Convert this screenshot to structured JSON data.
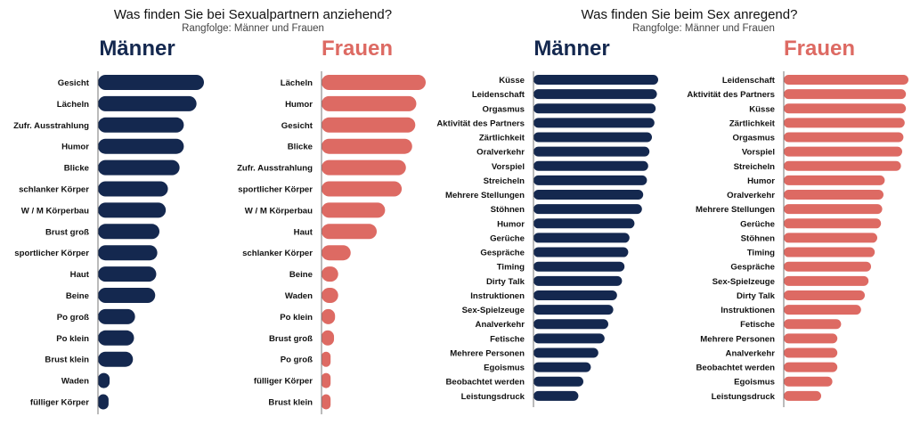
{
  "colors": {
    "men": "#14284f",
    "women": "#dd6a63",
    "axis": "#777777"
  },
  "chart_data": [
    {
      "type": "bar",
      "title": "Was finden Sie bei Sexualpartnern anziehend?",
      "subtitle": "Rangfolge: Männer und Frauen",
      "panels": [
        {
          "label": "Männer",
          "color": "men",
          "categories": [
            "Gesicht",
            "Lächeln",
            "Zufr. Ausstrahlung",
            "Humor",
            "Blicke",
            "schlanker Körper",
            "W / M Körperbau",
            "Brust groß",
            "sportlicher Körper",
            "Haut",
            "Beine",
            "Po groß",
            "Po klein",
            "Brust klein",
            "Waden",
            "fülliger Körper"
          ],
          "values": [
            100,
            93,
            81,
            81,
            77,
            66,
            64,
            58,
            56,
            55,
            54,
            35,
            34,
            33,
            11,
            10
          ]
        },
        {
          "label": "Frauen",
          "color": "women",
          "categories": [
            "Lächeln",
            "Humor",
            "Gesicht",
            "Blicke",
            "Zufr. Ausstrahlung",
            "sportlicher Körper",
            "W / M Körperbau",
            "Haut",
            "schlanker Körper",
            "Beine",
            "Waden",
            "Po klein",
            "Brust groß",
            "Po groß",
            "fülliger Körper",
            "Brust klein"
          ],
          "values": [
            100,
            91,
            90,
            87,
            81,
            77,
            61,
            53,
            28,
            16,
            16,
            13,
            12,
            3,
            3,
            2
          ]
        }
      ]
    },
    {
      "type": "bar",
      "title": "Was finden Sie beim Sex anregend?",
      "subtitle": "Rangfolge: Männer und Frauen",
      "panels": [
        {
          "label": "Männer",
          "color": "men",
          "categories": [
            "Küsse",
            "Leidenschaft",
            "Orgasmus",
            "Aktivität des Partners",
            "Zärtlichkeit",
            "Oralverkehr",
            "Vorspiel",
            "Streicheln",
            "Mehrere Stellungen",
            "Stöhnen",
            "Humor",
            "Gerüche",
            "Gespräche",
            "Timing",
            "Dirty Talk",
            "Instruktionen",
            "Sex-Spielzeuge",
            "Analverkehr",
            "Fetische",
            "Mehrere Personen",
            "Egoismus",
            "Beobachtet werden",
            "Leistungsdruck"
          ],
          "values": [
            100,
            99,
            98,
            97,
            95,
            93,
            92,
            91,
            88,
            87,
            81,
            77,
            76,
            73,
            71,
            67,
            64,
            60,
            57,
            52,
            46,
            40,
            36
          ]
        },
        {
          "label": "Frauen",
          "color": "women",
          "categories": [
            "Leidenschaft",
            "Aktivität des Partners",
            "Küsse",
            "Zärtlichkeit",
            "Orgasmus",
            "Vorspiel",
            "Streicheln",
            "Humor",
            "Oralverkehr",
            "Mehrere Stellungen",
            "Gerüche",
            "Stöhnen",
            "Timing",
            "Gespräche",
            "Sex-Spielzeuge",
            "Dirty Talk",
            "Instruktionen",
            "Fetische",
            "Mehrere Personen",
            "Analverkehr",
            "Beobachtet werden",
            "Egoismus",
            "Leistungsdruck"
          ],
          "values": [
            100,
            98,
            98,
            97,
            96,
            95,
            94,
            81,
            80,
            79,
            78,
            75,
            73,
            70,
            68,
            65,
            62,
            46,
            43,
            43,
            43,
            39,
            30
          ]
        }
      ]
    }
  ]
}
